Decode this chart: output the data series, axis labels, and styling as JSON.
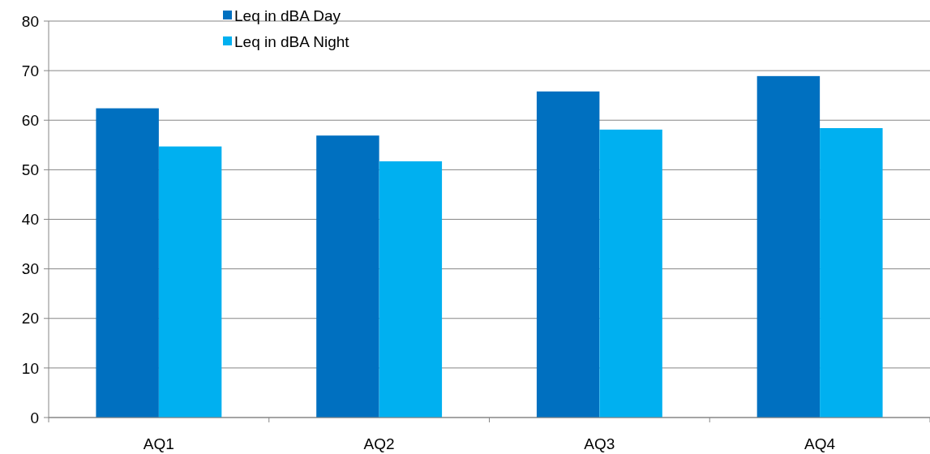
{
  "chart_data": {
    "type": "bar",
    "categories": [
      "AQ1",
      "AQ2",
      "AQ3",
      "AQ4"
    ],
    "series": [
      {
        "name": "Leq in dBA Day",
        "color": "#0070c0",
        "values": [
          62.4,
          56.9,
          65.8,
          68.9
        ]
      },
      {
        "name": "Leq in dBA Night",
        "color": "#00b0f0",
        "values": [
          54.7,
          51.7,
          58.1,
          58.4
        ]
      }
    ],
    "ylim": [
      0,
      80
    ],
    "yticks": [
      0,
      10,
      20,
      30,
      40,
      50,
      60,
      70,
      80
    ],
    "grid": "y",
    "legend": "top"
  }
}
